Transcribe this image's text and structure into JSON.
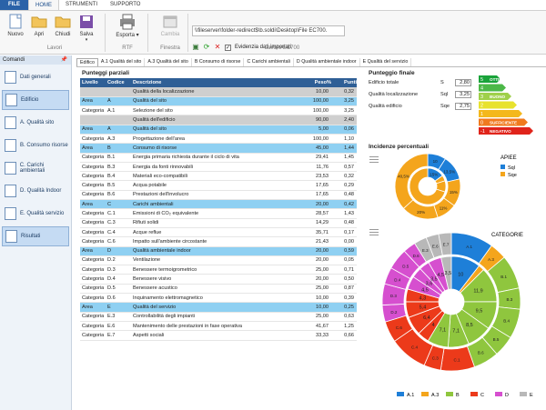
{
  "ribbon_tabs": [
    "FILE",
    "HOME",
    "STRUMENTI",
    "SUPPORTO"
  ],
  "ribbon": {
    "nuovo": "Nuovo",
    "apri": "Apri",
    "chiudi": "Chiudi",
    "salva": "Salva",
    "lavori": "Lavori",
    "esporta": "Esporta",
    "rtf": "RTF",
    "cambia": "Cambia",
    "finestra": "Finestra",
    "path": "\\\\fileserver\\folder-redirect$\\b.soldi\\Desktop\\File EC700.",
    "evidenzia": "Evidenzia dati importati",
    "lavoro": "Lavoro EC700"
  },
  "sidebar": {
    "title": "Comandi",
    "pin": "✕",
    "items": [
      "Dati generali",
      "Edificio",
      "A. Qualità sito",
      "B. Consumo risorse",
      "C. Carichi ambientali",
      "D. Qualità Indoor",
      "E. Qualità servizio",
      "Risultati"
    ]
  },
  "content_tabs": [
    "Edifico",
    "A.1 Qualità del sito",
    "A.3 Qualità del sito",
    "B Consumo di risorse",
    "C Carichi ambientali",
    "D Qualità ambientale indoor",
    "E Qualità del servizio"
  ],
  "table": {
    "title": "Punteggi parziali",
    "headers": [
      "Livello",
      "Codice",
      "Descrizione",
      "Peso%",
      "Punti"
    ],
    "rows": [
      [
        "grey",
        "",
        "",
        "Qualità della localizzazione",
        "10,00",
        "0,32"
      ],
      [
        "blue",
        "Area",
        "A",
        "Qualità del sito",
        "100,00",
        "3,25"
      ],
      [
        "",
        "Categoria",
        "A.1",
        "Selezione del sito",
        "100,00",
        "3,25"
      ],
      [
        "grey",
        "",
        "",
        "Qualità dell'edificio",
        "90,00",
        "2,40"
      ],
      [
        "blue",
        "Area",
        "A",
        "Qualità del sito",
        "5,00",
        "0,06"
      ],
      [
        "",
        "Categoria",
        "A.3",
        "Progettazione dell'area",
        "100,00",
        "1,10"
      ],
      [
        "blue",
        "Area",
        "B",
        "Consumo di risorse",
        "45,00",
        "1,44"
      ],
      [
        "",
        "Categoria",
        "B.1",
        "Energia primaria richiesta durante il ciclo di vita",
        "29,41",
        "1,45"
      ],
      [
        "",
        "Categoria",
        "B.3",
        "Energia da fonti rinnovabili",
        "11,76",
        "0,57"
      ],
      [
        "",
        "Categoria",
        "B.4",
        "Materiali eco-compatibili",
        "23,53",
        "0,32"
      ],
      [
        "",
        "Categoria",
        "B.5",
        "Acqua potabile",
        "17,65",
        "0,29"
      ],
      [
        "",
        "Categoria",
        "B.6",
        "Prestazioni dell'involucro",
        "17,65",
        "0,48"
      ],
      [
        "blue",
        "Area",
        "C",
        "Carichi ambientali",
        "20,00",
        "0,42"
      ],
      [
        "",
        "Categoria",
        "C.1",
        "Emissioni di CO₂ equivalente",
        "28,57",
        "1,43"
      ],
      [
        "",
        "Categoria",
        "C.3",
        "Rifiuti solidi",
        "14,29",
        "0,48"
      ],
      [
        "",
        "Categoria",
        "C.4",
        "Acque reflue",
        "35,71",
        "0,17"
      ],
      [
        "",
        "Categoria",
        "C.6",
        "Impatto sull'ambiente circostante",
        "21,43",
        "0,00"
      ],
      [
        "blue",
        "Area",
        "D",
        "Qualità ambientale indoor",
        "20,00",
        "0,59"
      ],
      [
        "",
        "Categoria",
        "D.2",
        "Ventilazione",
        "20,00",
        "0,05"
      ],
      [
        "",
        "Categoria",
        "D.3",
        "Benessere termoigrometrico",
        "25,00",
        "0,71"
      ],
      [
        "",
        "Categoria",
        "D.4",
        "Benessere visivo",
        "20,00",
        "0,50"
      ],
      [
        "",
        "Categoria",
        "D.5",
        "Benessere acustico",
        "25,00",
        "0,87"
      ],
      [
        "",
        "Categoria",
        "D.6",
        "Inquinamento elettromagnetico",
        "10,00",
        "0,39"
      ],
      [
        "blue",
        "Area",
        "E",
        "Qualità del servizio",
        "10,00",
        "0,25"
      ],
      [
        "",
        "Categoria",
        "E.3",
        "Controllabilità degli impianti",
        "25,00",
        "0,63"
      ],
      [
        "",
        "Categoria",
        "E.6",
        "Mantenimento delle prestazioni in fase operativa",
        "41,67",
        "1,25"
      ],
      [
        "",
        "Categoria",
        "E.7",
        "Aspetti sociali",
        "33,33",
        "0,66"
      ]
    ]
  },
  "punteggio": {
    "title": "Punteggio finale",
    "rows": [
      [
        "Edificio totale",
        "S",
        "2,80"
      ],
      [
        "Qualità localizzazione",
        "Sql",
        "3,25"
      ],
      [
        "Qualità edificio",
        "Sqe",
        "2,75"
      ]
    ],
    "scale": [
      {
        "v": "5",
        "t": "OTTIMO",
        "c": "#1aa33a"
      },
      {
        "v": "4",
        "t": "",
        "c": "#4cb848"
      },
      {
        "v": "3",
        "t": "BUONO",
        "c": "#9fd04a"
      },
      {
        "v": "2",
        "t": "",
        "c": "#e8e22e"
      },
      {
        "v": "1",
        "t": "",
        "c": "#f4b81c"
      },
      {
        "v": "0",
        "t": "SUFFICIENTE",
        "c": "#f07a1e"
      },
      {
        "v": "-1",
        "t": "NEGATIVO",
        "c": "#e0241b"
      }
    ]
  },
  "incidenze": {
    "title": "Incidenze percentuali",
    "apiee": {
      "title": "APIEE",
      "legend": [
        {
          "name": "Sql",
          "color": "#1e7fd8"
        },
        {
          "name": "Sqe",
          "color": "#f4a51c"
        }
      ],
      "outer": [
        [
          "10",
          10
        ],
        [
          "13,5%",
          13.5
        ],
        [
          "15%",
          15
        ],
        [
          "11%",
          11
        ],
        [
          "20%",
          20
        ],
        [
          "40,5%",
          40.5
        ]
      ],
      "inner": [
        [
          "15%",
          15
        ],
        [
          "",
          5
        ],
        [
          "",
          10
        ],
        [
          "",
          70
        ]
      ]
    },
    "categorie": {
      "title": "CATEGORIE",
      "legend": [
        {
          "name": "A.1",
          "color": "#1e7fd8"
        },
        {
          "name": "A.3",
          "color": "#f4a51c"
        },
        {
          "name": "B",
          "color": "#8fc63e"
        },
        {
          "name": "C",
          "color": "#ec3a1a"
        },
        {
          "name": "D",
          "color": "#d64fcf"
        },
        {
          "name": "E",
          "color": "#b8b8b8"
        }
      ],
      "outer": [
        [
          "A.1",
          10,
          "#1e7fd8"
        ],
        [
          "A.3",
          4,
          "#f4a51c"
        ],
        [
          "B.1",
          8,
          "#8fc63e"
        ],
        [
          "B.3",
          5,
          "#8fc63e"
        ],
        [
          "B.4",
          7,
          "#8fc63e"
        ],
        [
          "B.5",
          5,
          "#8fc63e"
        ],
        [
          "B.6",
          6,
          "#8fc63e"
        ],
        [
          "C.1",
          8,
          "#ec3a1a"
        ],
        [
          "C.3",
          4,
          "#ec3a1a"
        ],
        [
          "C.4",
          9,
          "#ec3a1a"
        ],
        [
          "C.6",
          5,
          "#ec3a1a"
        ],
        [
          "D.2",
          4,
          "#d64fcf"
        ],
        [
          "D.3",
          5,
          "#d64fcf"
        ],
        [
          "D.4",
          4,
          "#d64fcf"
        ],
        [
          "D.5",
          5,
          "#d64fcf"
        ],
        [
          "D.6",
          3,
          "#d64fcf"
        ],
        [
          "E.3",
          3,
          "#b8b8b8"
        ],
        [
          "E.6",
          3,
          "#b8b8b8"
        ],
        [
          "E.7",
          3,
          "#b8b8b8"
        ]
      ],
      "inner": [
        [
          "10",
          10,
          "#1e7fd8"
        ],
        [
          "",
          2,
          "#f4a51c"
        ],
        [
          "11,9",
          11.9,
          "#8fc63e"
        ],
        [
          "9,5",
          9.5,
          "#8fc63e"
        ],
        [
          "8,5",
          8.5,
          "#8fc63e"
        ],
        [
          "7,1",
          7.1,
          "#8fc63e"
        ],
        [
          "7,1",
          7.1,
          "#8fc63e"
        ],
        [
          "4",
          4,
          "#ec3a1a"
        ],
        [
          "6,4",
          6.4,
          "#ec3a1a"
        ],
        [
          "5,4",
          5.4,
          "#ec3a1a"
        ],
        [
          "4,3",
          4.3,
          "#ec3a1a"
        ],
        [
          "4,5",
          4.5,
          "#d64fcf"
        ],
        [
          "3,6",
          3.6,
          "#d64fcf"
        ],
        [
          "3,5",
          3.5,
          "#d64fcf"
        ],
        [
          "4,5",
          4.5,
          "#d64fcf"
        ],
        [
          "3,5",
          3.5,
          "#b8b8b8"
        ]
      ]
    }
  }
}
